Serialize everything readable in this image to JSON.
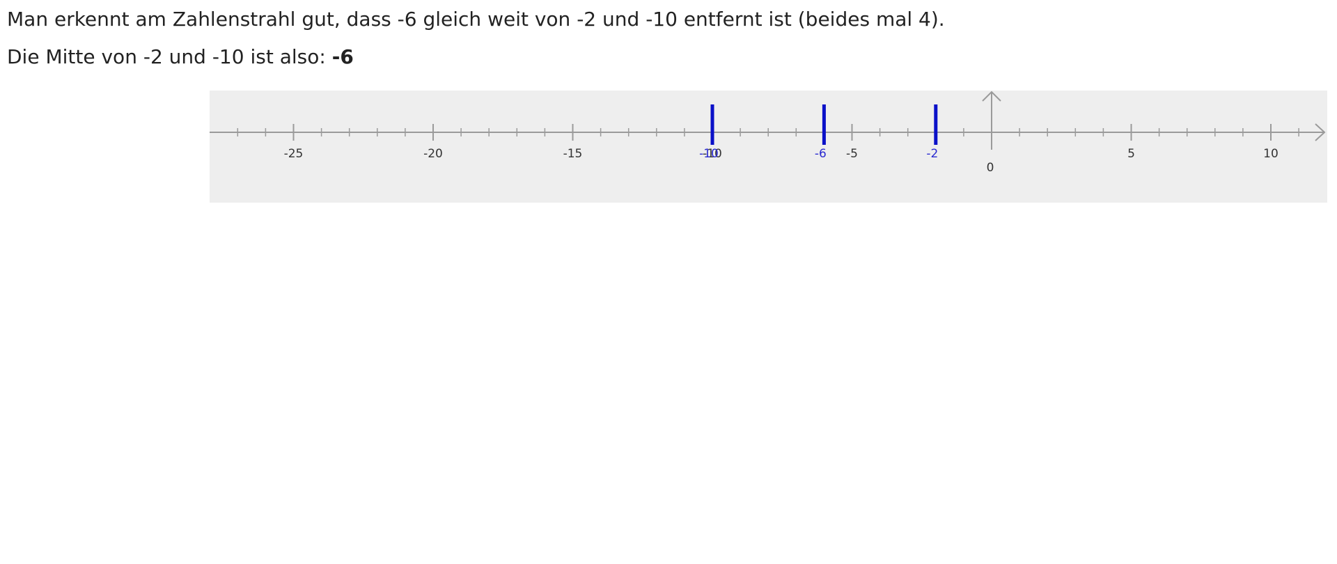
{
  "text": {
    "line1": "Man erkennt am Zahlenstrahl gut, dass -6 gleich weit von -2 und -10 entfernt ist (beides mal 4).",
    "line2_prefix": "Die Mitte von -2 und -10 ist also: ",
    "line2_answer": "-6"
  },
  "colors": {
    "panel_bg": "#eeeeee",
    "axis": "#9a9a9a",
    "axis_label": "#333333",
    "marker": "#0a10c8",
    "marker_label": "#2a2ad0"
  },
  "numberline": {
    "x_min": -28,
    "x_max": 12,
    "major_step": 5,
    "minor_step": 1,
    "major_ticks": [
      {
        "value": -25,
        "label": "-25"
      },
      {
        "value": -20,
        "label": "-20"
      },
      {
        "value": -15,
        "label": "-15"
      },
      {
        "value": -10,
        "label": "-10"
      },
      {
        "value": -5,
        "label": "-5"
      },
      {
        "value": 5,
        "label": "5"
      },
      {
        "value": 10,
        "label": "10"
      }
    ],
    "origin_label": "0",
    "markers": [
      {
        "value": -10,
        "label": "-10"
      },
      {
        "value": -6,
        "label": "-6"
      },
      {
        "value": -2,
        "label": "-2"
      }
    ]
  }
}
